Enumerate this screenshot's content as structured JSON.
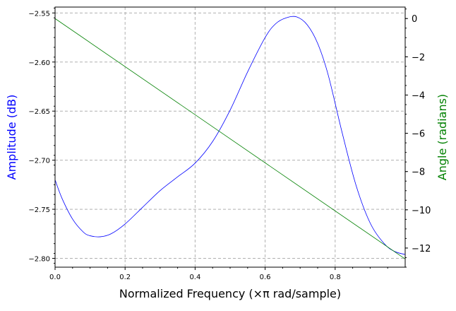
{
  "chart_data": {
    "type": "line",
    "xlabel": "Normalized Frequency (×π rad/sample)",
    "ylabel_left": "Amplitude (dB)",
    "ylabel_right": "Angle (radians)",
    "xlim": [
      0,
      1.0
    ],
    "ylim_left": [
      -2.809,
      -2.544
    ],
    "ylim_right": [
      -13.0,
      0.6
    ],
    "x_ticks": [
      "0.0",
      "0.2",
      "0.4",
      "0.6",
      "0.8"
    ],
    "x_tick_values": [
      0,
      0.2,
      0.4,
      0.6,
      0.8
    ],
    "y_left_ticks": [
      "−2.55",
      "−2.60",
      "−2.65",
      "−2.70",
      "−2.75",
      "−2.80"
    ],
    "y_left_tick_values": [
      -2.55,
      -2.6,
      -2.65,
      -2.7,
      -2.75,
      -2.8
    ],
    "y_right_ticks": [
      "0",
      "−2",
      "−4",
      "−6",
      "−8",
      "−10",
      "−12"
    ],
    "y_right_tick_values": [
      0,
      -2,
      -4,
      -6,
      -8,
      -10,
      -12
    ],
    "grid": true,
    "colors": {
      "amplitude": "#0000ff",
      "angle": "#008000",
      "grid": "#b0b0b0"
    },
    "series": [
      {
        "name": "Amplitude (dB)",
        "axis": "left",
        "x": [
          0.0,
          0.02,
          0.05,
          0.08,
          0.1,
          0.13,
          0.16,
          0.2,
          0.25,
          0.3,
          0.35,
          0.4,
          0.45,
          0.5,
          0.55,
          0.6,
          0.63,
          0.66,
          0.69,
          0.72,
          0.75,
          0.78,
          0.82,
          0.86,
          0.9,
          0.94,
          0.97,
          0.999
        ],
        "values": [
          -2.72,
          -2.739,
          -2.76,
          -2.773,
          -2.777,
          -2.778,
          -2.775,
          -2.765,
          -2.748,
          -2.731,
          -2.717,
          -2.703,
          -2.681,
          -2.649,
          -2.61,
          -2.575,
          -2.561,
          -2.555,
          -2.554,
          -2.562,
          -2.581,
          -2.613,
          -2.672,
          -2.726,
          -2.764,
          -2.785,
          -2.793,
          -2.796
        ]
      },
      {
        "name": "Angle (radians)",
        "axis": "right",
        "x": [
          0.0,
          0.999
        ],
        "values": [
          0.0,
          -12.56
        ]
      }
    ]
  }
}
